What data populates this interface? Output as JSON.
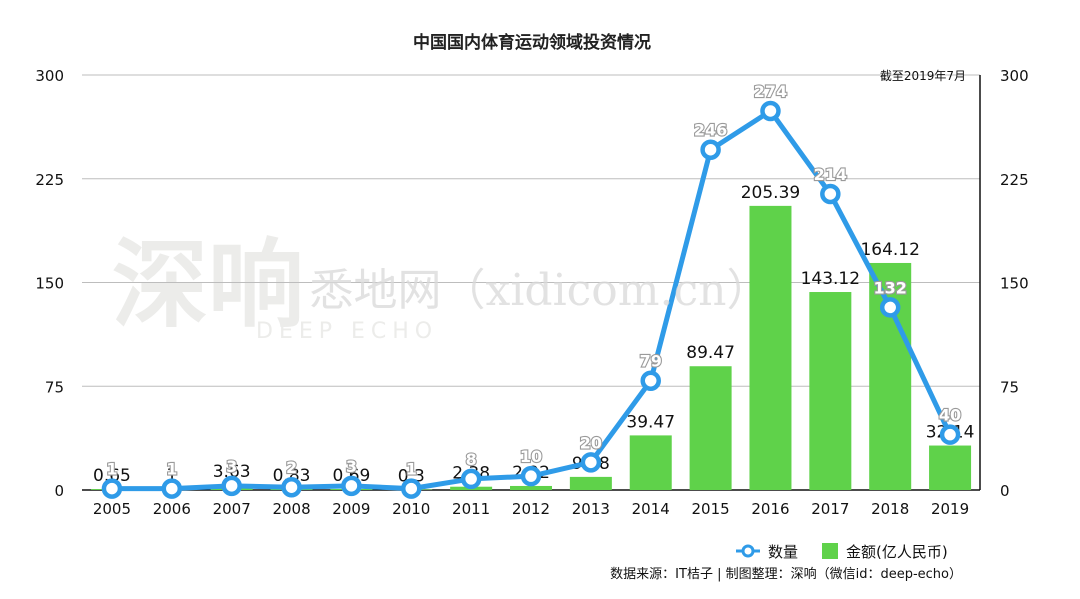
{
  "chart_data": {
    "type": "bar+line",
    "title": "中国国内体育运动领域投资情况",
    "note": "截至2019年7月",
    "categories": [
      "2005",
      "2006",
      "2007",
      "2008",
      "2009",
      "2010",
      "2011",
      "2012",
      "2013",
      "2014",
      "2015",
      "2016",
      "2017",
      "2018",
      "2019"
    ],
    "y_ticks": [
      "0",
      "75",
      "150",
      "225",
      "300"
    ],
    "ylim": [
      0,
      300
    ],
    "series": [
      {
        "name": "金额(亿人民币)",
        "type": "bar",
        "color": "#5fd24a",
        "values": [
          0.65,
          1,
          3.63,
          0.83,
          0.69,
          0.3,
          2.38,
          2.92,
          9.48,
          39.47,
          89.47,
          205.39,
          143.12,
          164.12,
          32.14
        ],
        "labels": [
          "0.65",
          "1",
          "3.63",
          "0.83",
          "0.69",
          "0.3",
          "2.38",
          "2.92",
          "9.48",
          "39.47",
          "89.47",
          "205.39",
          "143.12",
          "164.12",
          "32.14"
        ]
      },
      {
        "name": "数量",
        "type": "line",
        "color": "#2f9be8",
        "values": [
          1,
          1,
          3,
          2,
          3,
          1,
          8,
          10,
          20,
          79,
          246,
          274,
          214,
          132,
          40
        ],
        "labels": [
          "1",
          "1",
          "3",
          "2",
          "3",
          "1",
          "8",
          "10",
          "20",
          "79",
          "246",
          "274",
          "214",
          "132",
          "40"
        ]
      }
    ],
    "grid": true,
    "legend_position": "bottom-right"
  },
  "source_text": "数据来源：IT桔子 | 制图整理：深响（微信id：deep-echo）",
  "watermark": {
    "logo_text": "深响",
    "logo_sub": "DEEP ECHO",
    "overlay_text": "悉地网（xidicom.cn）"
  }
}
